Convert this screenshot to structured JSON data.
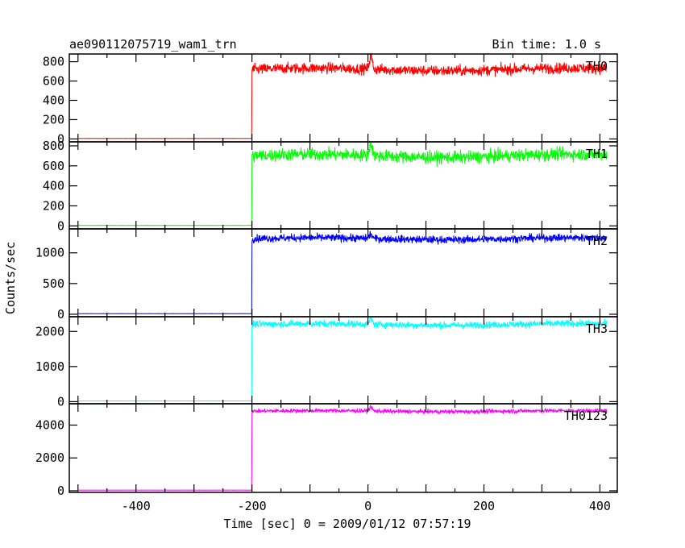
{
  "chart_data": {
    "type": "line",
    "title_left": "ae090112075719_wam1_trn",
    "title_right": "Bin time: 1.0 s",
    "xlabel": "Time [sec] 0 = 2009/01/12 07:57:19",
    "ylabel": "Counts/sec",
    "xlim": [
      -515,
      430
    ],
    "x_ticks": [
      -400,
      -200,
      0,
      200,
      400
    ],
    "grid": false,
    "legend": "none",
    "burst_trigger_x": -200,
    "panels": [
      {
        "name": "TH0",
        "color": "#ff0000",
        "ylim": [
          -30,
          880
        ],
        "y_ticks": [
          0,
          200,
          400,
          600,
          800
        ],
        "x_start": -500,
        "x_end": 412,
        "pre_level": 5,
        "post_level": 720,
        "noise": 40,
        "flare_x": 5,
        "flare_peak": 850
      },
      {
        "name": "TH1",
        "color": "#00ff00",
        "ylim": [
          -30,
          840
        ],
        "y_ticks": [
          0,
          200,
          400,
          600,
          800
        ],
        "x_start": -500,
        "x_end": 412,
        "pre_level": 5,
        "post_level": 700,
        "noise": 45,
        "flare_x": 5,
        "flare_peak": 820
      },
      {
        "name": "TH2",
        "color": "#0000ff",
        "ylim": [
          -40,
          1390
        ],
        "y_ticks": [
          0,
          500,
          1000
        ],
        "x_start": -500,
        "x_end": 412,
        "pre_level": 10,
        "post_level": 1230,
        "noise": 45,
        "flare_x": 5,
        "flare_peak": 1300
      },
      {
        "name": "TH3",
        "color": "#00ffff",
        "ylim": [
          -60,
          2420
        ],
        "y_ticks": [
          0,
          1000,
          2000
        ],
        "x_start": -500,
        "x_end": 412,
        "pre_level": 20,
        "post_level": 2200,
        "noise": 70,
        "flare_x": 5,
        "flare_peak": 2350
      },
      {
        "name": "TH0123",
        "color": "#ff00ff",
        "ylim": [
          -100,
          5300
        ],
        "y_ticks": [
          0,
          2000,
          4000
        ],
        "x_start": -500,
        "x_end": 412,
        "pre_level": 40,
        "post_level": 4850,
        "noise": 90,
        "flare_x": 5,
        "flare_peak": 5100
      }
    ]
  }
}
